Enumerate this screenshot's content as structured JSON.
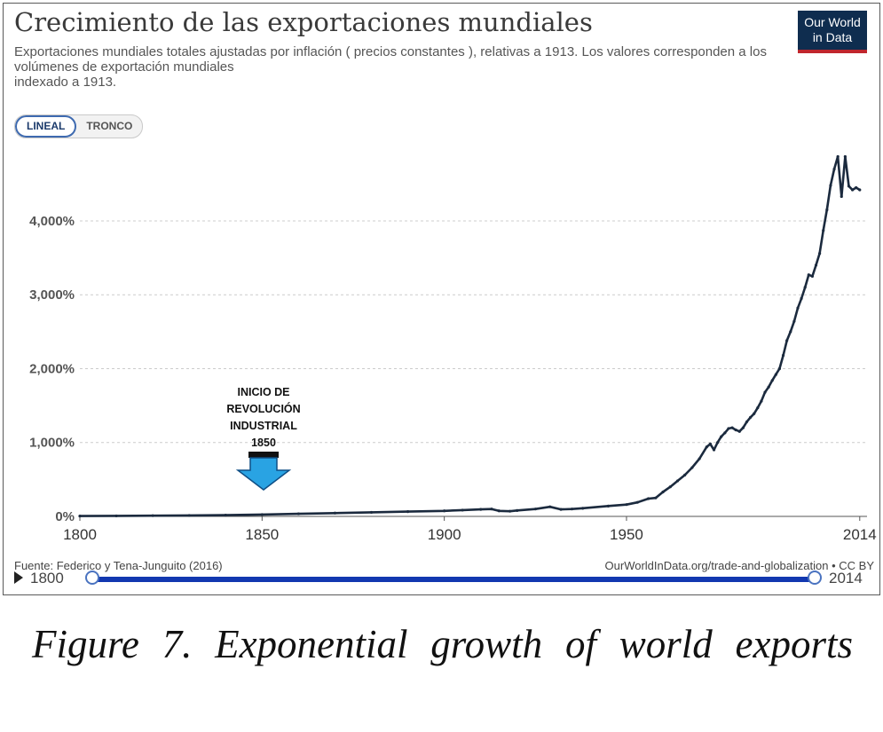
{
  "header": {
    "title": "Crecimiento de las exportaciones mundiales",
    "subtitle_lines": [
      "Exportaciones mundiales totales ajustadas por inflación ( precios constantes ), relativas a 1913. Los valores corresponden a los",
      "volúmenes de exportación mundiales",
      "indexado a 1913."
    ],
    "logo_lines": [
      "Our World",
      "in Data"
    ]
  },
  "toggle": {
    "linear_label": "LINEAL",
    "log_label": "TRONCO"
  },
  "annotation": {
    "lines": [
      "INICIO DE",
      "REVOLUCIÓN",
      "INDUSTRIAL"
    ],
    "year_label": "1850"
  },
  "footer": {
    "source": "Fuente: Federico y Tena-Junguito (2016)",
    "attribution": "OurWorldInData.org/trade-and-globalization • CC BY"
  },
  "timeline": {
    "start": "1800",
    "end": "2014"
  },
  "caption": "Figure 7. Exponential growth of world exports",
  "colors": {
    "line": "#1b2a3e",
    "arrow": "#29a3e3",
    "grid": "#cccccc",
    "slider": "#1238b0"
  },
  "chart_data": {
    "type": "line",
    "title": "Crecimiento de las exportaciones mundiales",
    "xlabel": "",
    "ylabel": "",
    "x_ticks": [
      "1800",
      "1850",
      "1900",
      "1950",
      "2014"
    ],
    "x_tick_values": [
      1800,
      1850,
      1900,
      1950,
      2014
    ],
    "y_ticks": [
      "0%",
      "1,000%",
      "2,000%",
      "3,000%",
      "4,000%"
    ],
    "y_tick_values": [
      0,
      1000,
      2000,
      3000,
      4000
    ],
    "xlim": [
      1800,
      2016
    ],
    "ylim": [
      0,
      4900
    ],
    "grid": "horizontal-dashed",
    "series": [
      {
        "x": [
          1800,
          1810,
          1820,
          1830,
          1840,
          1850,
          1860,
          1870,
          1880,
          1890,
          1900,
          1905,
          1910,
          1913,
          1915,
          1918,
          1920,
          1925,
          1929,
          1932,
          1935,
          1938,
          1945,
          1950,
          1953,
          1956,
          1958,
          1960,
          1962,
          1964,
          1966,
          1968,
          1970,
          1972,
          1973,
          1974,
          1975,
          1976,
          1977,
          1978,
          1979,
          1980,
          1981,
          1982,
          1983,
          1984,
          1985,
          1986,
          1987,
          1988,
          1989,
          1990,
          1991,
          1992,
          1993,
          1994,
          1995,
          1996,
          1997,
          1998,
          1999,
          2000,
          2001,
          2002,
          2003,
          2004,
          2005,
          2006,
          2007,
          2008,
          2009,
          2010,
          2011,
          2012,
          2013,
          2014
        ],
        "y": [
          5,
          7,
          10,
          13,
          17,
          25,
          35,
          45,
          55,
          65,
          75,
          85,
          95,
          100,
          75,
          70,
          80,
          100,
          130,
          95,
          100,
          110,
          140,
          160,
          190,
          240,
          250,
          330,
          400,
          480,
          560,
          660,
          780,
          940,
          980,
          900,
          1000,
          1080,
          1130,
          1190,
          1200,
          1170,
          1150,
          1200,
          1280,
          1340,
          1390,
          1470,
          1560,
          1680,
          1750,
          1840,
          1920,
          2000,
          2180,
          2380,
          2500,
          2640,
          2820,
          2950,
          3100,
          3270,
          3250,
          3400,
          3560,
          3870,
          4150,
          4480,
          4700,
          4870,
          4330,
          4870,
          4470,
          4420,
          4450,
          4420
        ]
      }
    ]
  }
}
